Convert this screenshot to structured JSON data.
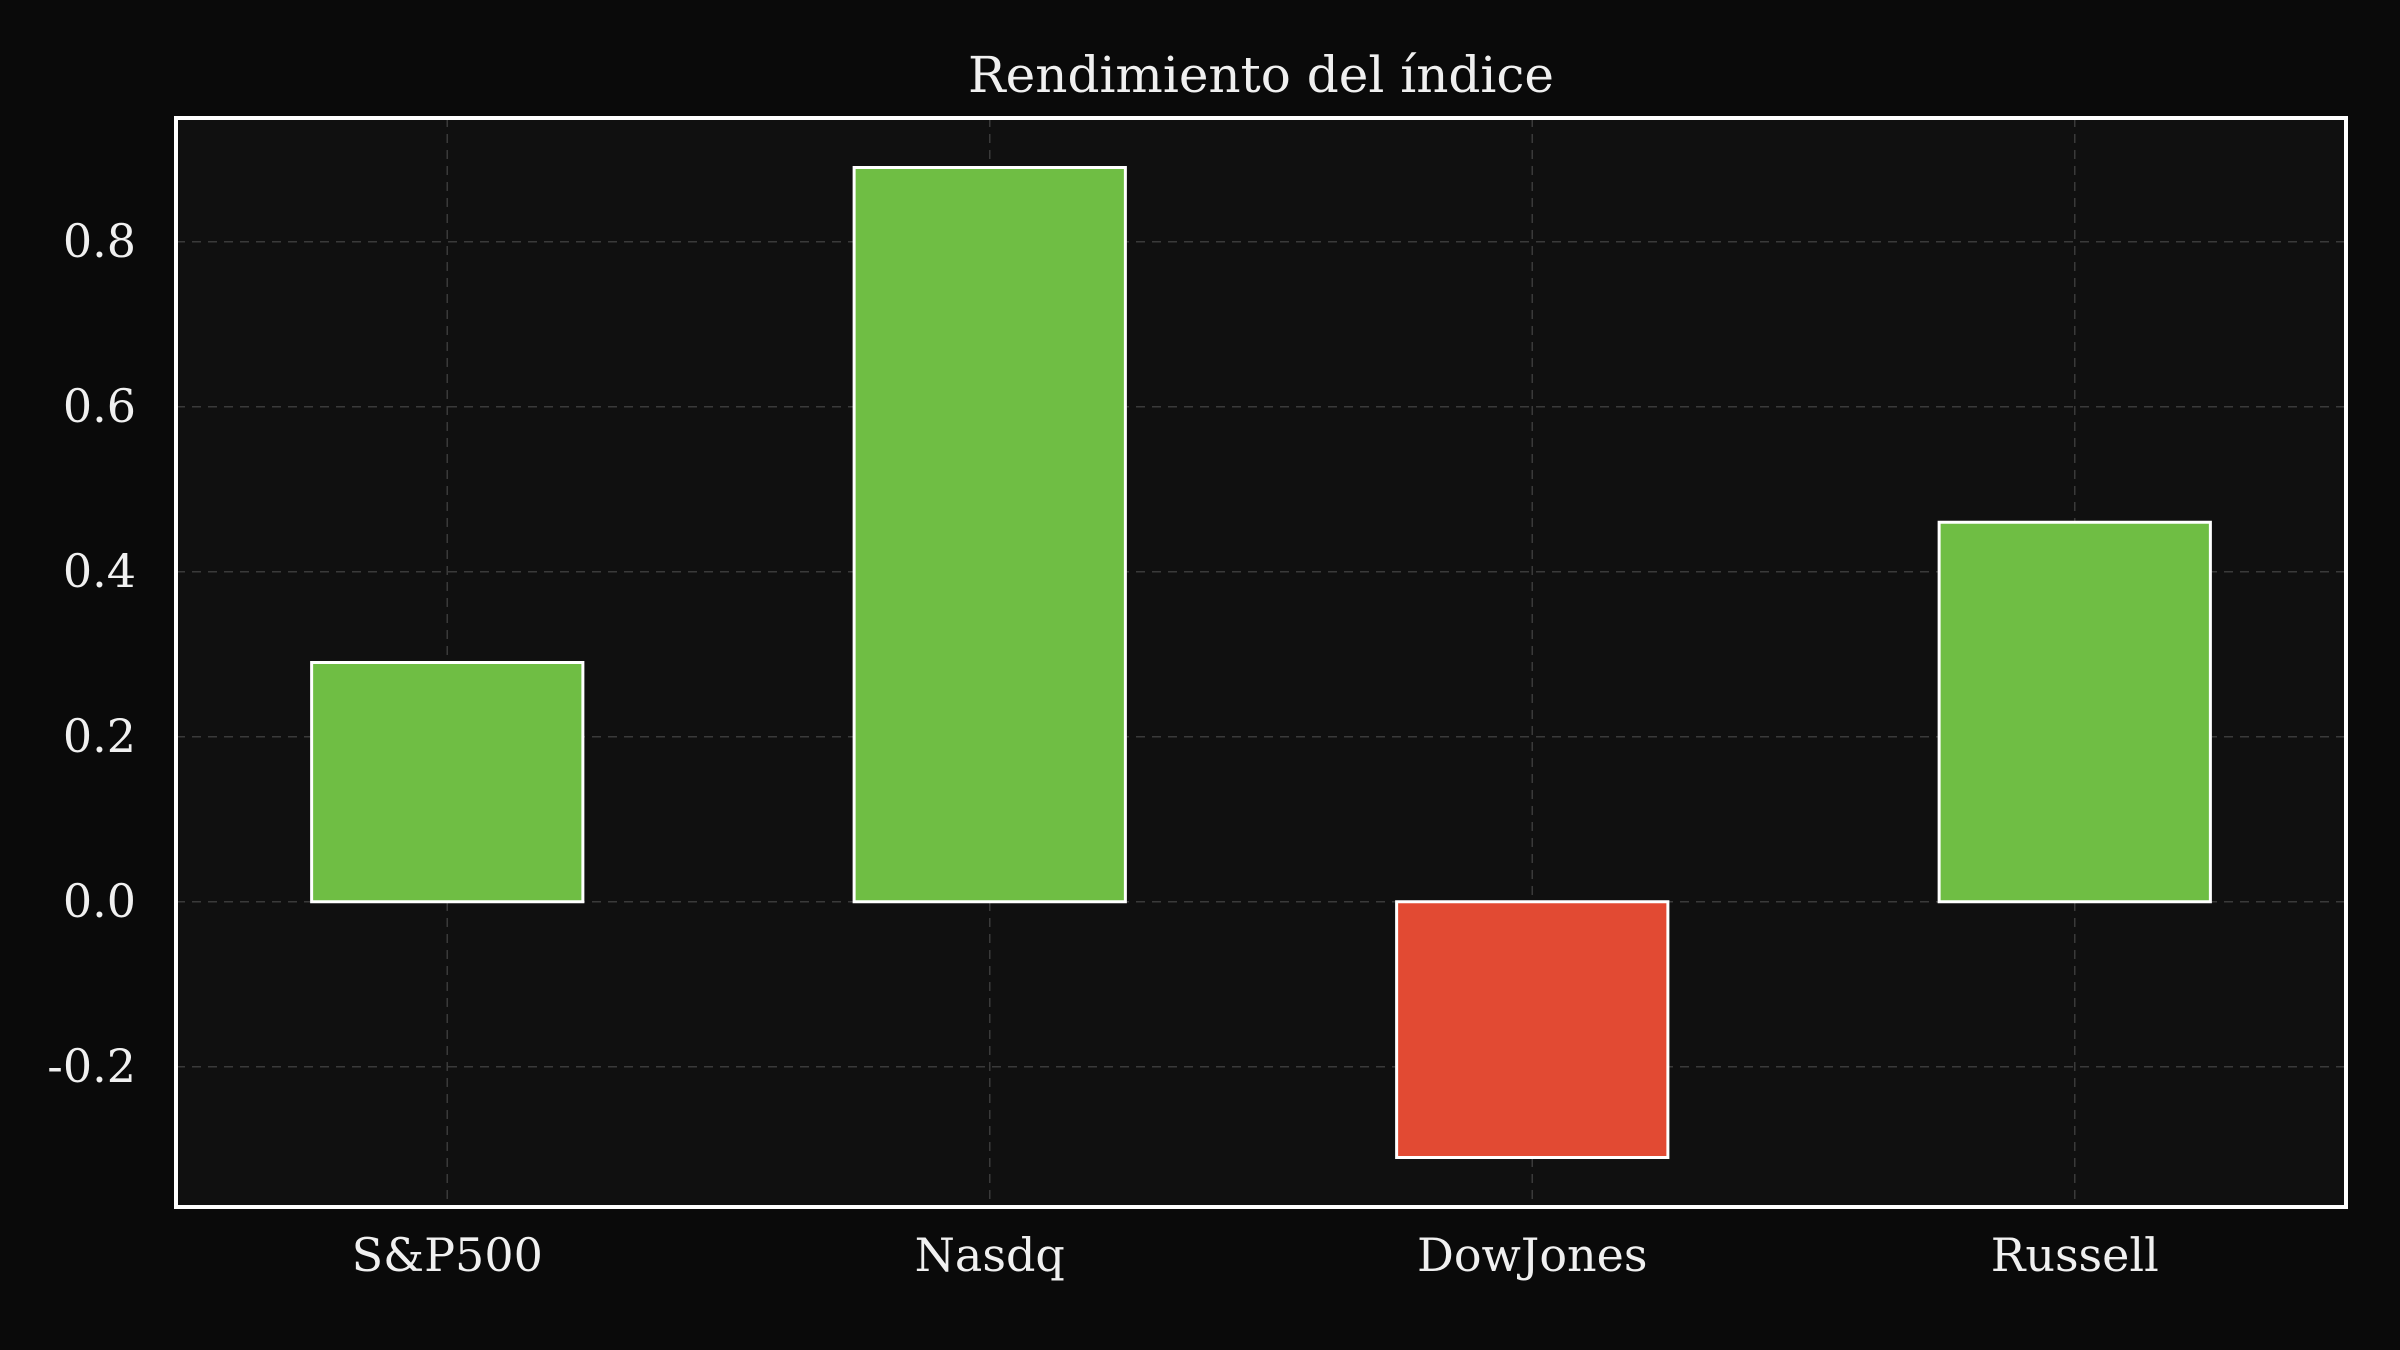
{
  "chart_data": {
    "type": "bar",
    "title": "Rendimiento del índice",
    "xlabel": "",
    "ylabel": "",
    "categories": [
      "S&P500",
      "Nasdq",
      "DowJones",
      "Russell"
    ],
    "values": [
      0.29,
      0.89,
      -0.31,
      0.46
    ],
    "ylim": [
      -0.37,
      0.95
    ],
    "yticks": [
      -0.2,
      0.0,
      0.2,
      0.4,
      0.6,
      0.8
    ],
    "ytick_labels": [
      "-0.2",
      "0.0",
      "0.2",
      "0.4",
      "0.6",
      "0.8"
    ],
    "grid": true,
    "legend": "none",
    "colors": {
      "positive": "#6fbe44",
      "negative": "#e24a33",
      "background": "#0a0a0a",
      "plot_background": "#101010",
      "text": "#f0f0f0"
    }
  }
}
